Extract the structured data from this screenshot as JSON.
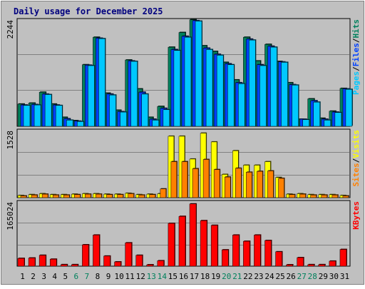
{
  "title": "Daily usage for December 2025",
  "colors": {
    "background": "#c0c0c0",
    "grid": "#808080",
    "title": "#00007f",
    "hits": "#00805c",
    "files": "#0040ff",
    "pages": "#00c8ff",
    "visits": "#ffff00",
    "sites": "#ff8000",
    "kbytes": "#ff0000",
    "weekend_label": "#00805c"
  },
  "chart_data": [
    {
      "type": "bar",
      "name": "top-panel",
      "categories": [
        "1",
        "2",
        "3",
        "4",
        "5",
        "6",
        "7",
        "8",
        "9",
        "10",
        "11",
        "12",
        "13",
        "14",
        "15",
        "16",
        "17",
        "18",
        "19",
        "20",
        "21",
        "22",
        "23",
        "24",
        "25",
        "26",
        "27",
        "28",
        "29",
        "30",
        "31"
      ],
      "weekend_categories": [
        "6",
        "7",
        "13",
        "14",
        "20",
        "21",
        "27",
        "28"
      ],
      "ylim": [
        0,
        2244
      ],
      "y_tick_label": "2244",
      "legend": [
        "Pages",
        "/",
        "Files",
        "/",
        "Hits"
      ],
      "series": [
        {
          "name": "Hits",
          "values": [
            470,
            490,
            720,
            470,
            190,
            120,
            1300,
            1880,
            700,
            340,
            1400,
            790,
            190,
            420,
            1670,
            1980,
            2250,
            1700,
            1580,
            1350,
            980,
            1880,
            1380,
            1730,
            1370,
            920,
            150,
            580,
            170,
            320,
            800
          ]
        },
        {
          "name": "Files",
          "values": [
            450,
            460,
            680,
            450,
            160,
            110,
            1290,
            1860,
            680,
            310,
            1380,
            720,
            150,
            380,
            1620,
            1900,
            2230,
            1650,
            1520,
            1320,
            920,
            1840,
            1300,
            1690,
            1360,
            880,
            150,
            540,
            150,
            300,
            790
          ]
        },
        {
          "name": "Pages",
          "values": [
            440,
            450,
            670,
            440,
            130,
            100,
            1280,
            1850,
            660,
            300,
            1370,
            680,
            130,
            350,
            1600,
            1880,
            2220,
            1620,
            1500,
            1300,
            900,
            1820,
            1280,
            1670,
            1350,
            870,
            140,
            510,
            130,
            290,
            780
          ]
        }
      ]
    },
    {
      "type": "bar",
      "name": "middle-panel",
      "categories": [
        "1",
        "2",
        "3",
        "4",
        "5",
        "6",
        "7",
        "8",
        "9",
        "10",
        "11",
        "12",
        "13",
        "14",
        "15",
        "16",
        "17",
        "18",
        "19",
        "20",
        "21",
        "22",
        "23",
        "24",
        "25",
        "26",
        "27",
        "28",
        "29",
        "30",
        "31"
      ],
      "ylim": [
        0,
        1528
      ],
      "y_tick_label": "1528",
      "legend": [
        "Sites",
        "/",
        "Visits"
      ],
      "series": [
        {
          "name": "Visits",
          "values": [
            50,
            70,
            90,
            70,
            70,
            80,
            90,
            90,
            80,
            80,
            100,
            70,
            80,
            90,
            1400,
            1400,
            880,
            1470,
            1270,
            530,
            1070,
            740,
            740,
            820,
            460,
            80,
            90,
            70,
            70,
            70,
            50
          ]
        },
        {
          "name": "Sites",
          "values": [
            40,
            60,
            80,
            60,
            60,
            70,
            80,
            80,
            70,
            70,
            90,
            60,
            70,
            200,
            820,
            820,
            660,
            870,
            640,
            470,
            670,
            580,
            600,
            610,
            440,
            70,
            80,
            60,
            60,
            60,
            40
          ]
        }
      ]
    },
    {
      "type": "bar",
      "name": "bottom-panel",
      "categories": [
        "1",
        "2",
        "3",
        "4",
        "5",
        "6",
        "7",
        "8",
        "9",
        "10",
        "11",
        "12",
        "13",
        "14",
        "15",
        "16",
        "17",
        "18",
        "19",
        "20",
        "21",
        "22",
        "23",
        "24",
        "25",
        "26",
        "27",
        "28",
        "29",
        "30",
        "31"
      ],
      "ylim": [
        0,
        165024
      ],
      "y_tick_label": "165024",
      "legend": [
        "KBytes"
      ],
      "series": [
        {
          "name": "KBytes",
          "values": [
            20000,
            21000,
            28000,
            18000,
            4000,
            4000,
            55000,
            80000,
            26000,
            11000,
            60000,
            28000,
            2000,
            14000,
            110000,
            128000,
            160000,
            117000,
            105000,
            42000,
            80000,
            64000,
            80000,
            66000,
            37000,
            2000,
            22000,
            4000,
            4000,
            13000,
            43000
          ]
        }
      ]
    }
  ]
}
